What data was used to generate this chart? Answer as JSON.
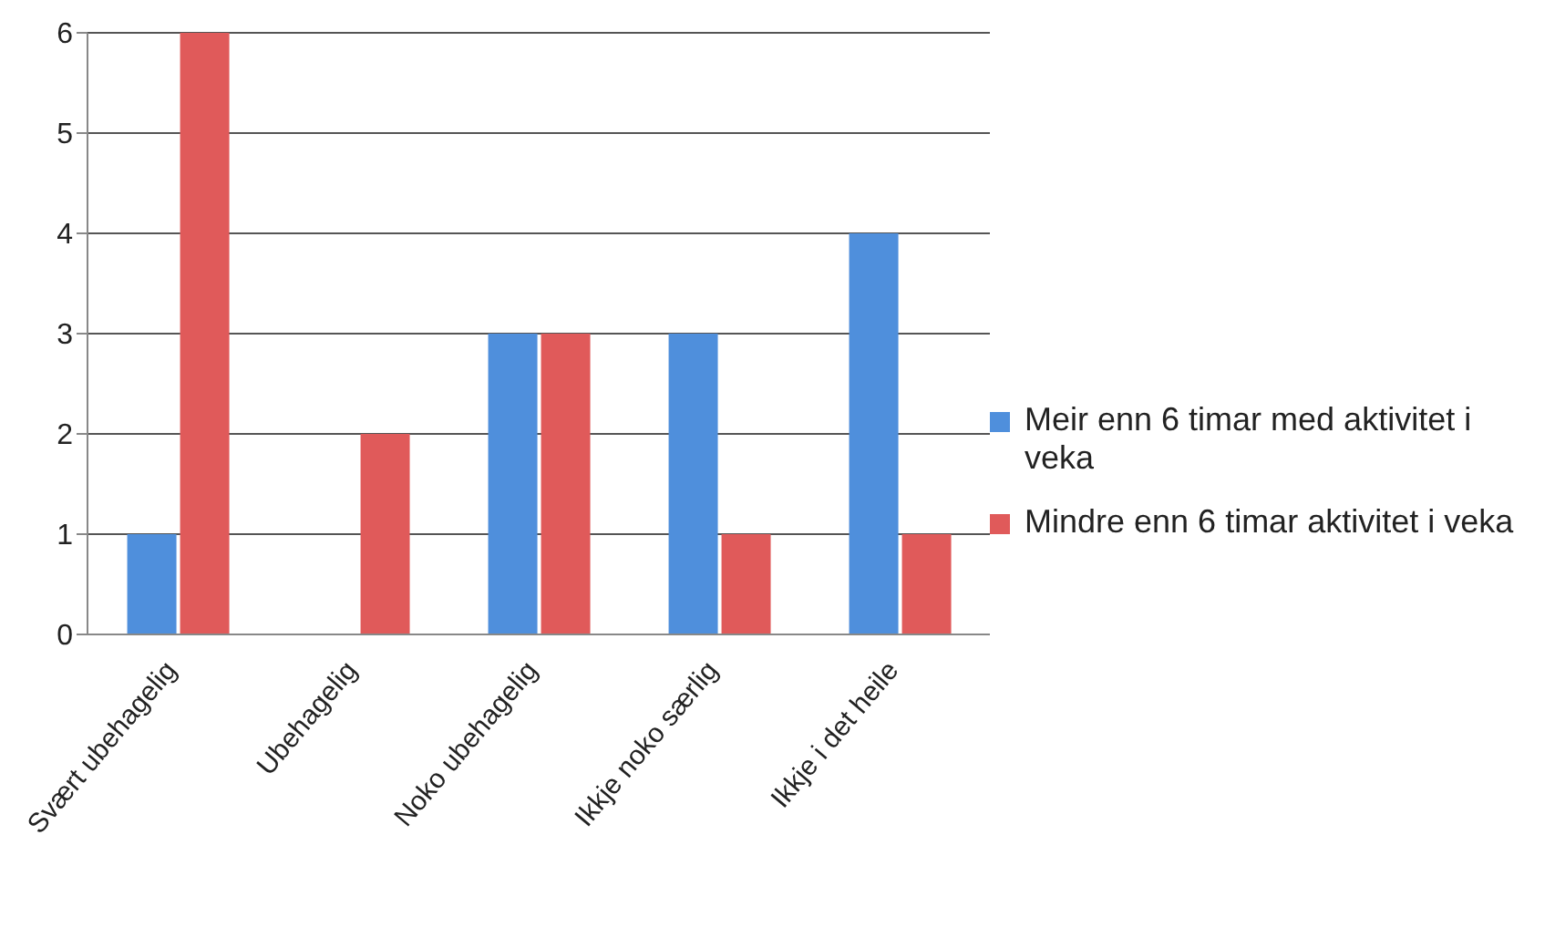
{
  "chart_data": {
    "type": "bar",
    "categories": [
      "Svært ubehagelig",
      "Ubehagelig",
      "Noko ubehagelig",
      "Ikkje noko særlig",
      "Ikkje i det heile"
    ],
    "series": [
      {
        "name": "Meir enn 6 timar med aktivitet i veka",
        "color": "#4f8fdc",
        "values": [
          1,
          0,
          3,
          3,
          4
        ]
      },
      {
        "name": "Mindre enn 6 timar aktivitet i veka",
        "color": "#e05a5a",
        "values": [
          6,
          2,
          3,
          1,
          1
        ]
      }
    ],
    "ylim": [
      0,
      6
    ],
    "yticks": [
      0,
      1,
      2,
      3,
      4,
      5,
      6
    ],
    "grid": "y",
    "legend": "right"
  }
}
